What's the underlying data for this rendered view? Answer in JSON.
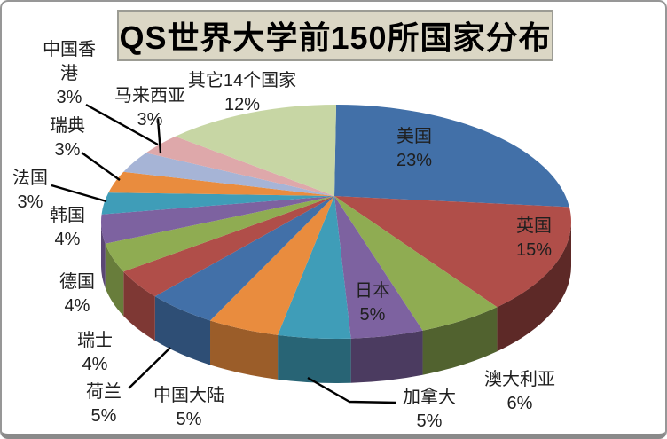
{
  "title": {
    "text": "QS世界大学前150所国家分布",
    "background": "#DBD7C5",
    "border_color": "#9C9C94",
    "text_color": "#000000"
  },
  "frame": {
    "background": "#FFFFFF",
    "border_color": "#979797"
  },
  "labels_style": {
    "text_color": "#1F1F1F",
    "leader_line_color": "#000000",
    "percent_suffix": "%"
  },
  "chart_data": {
    "type": "pie",
    "effect": "3d",
    "title": "QS世界大学前150所国家分布",
    "unit": "%",
    "total": 100,
    "start_angle_deg": 0,
    "direction": "clockwise",
    "labels_show": "name+percent",
    "legend": "none",
    "slices": [
      {
        "label": "美国",
        "value": 23,
        "color": "#4270A8"
      },
      {
        "label": "英国",
        "value": 15,
        "color": "#B04E49"
      },
      {
        "label": "澳大利亚",
        "value": 6,
        "color": "#8FAC52"
      },
      {
        "label": "日本",
        "value": 5,
        "color": "#7D62A0"
      },
      {
        "label": "加拿大",
        "value": 5,
        "color": "#3F9DB8"
      },
      {
        "label": "中国大陆",
        "value": 5,
        "color": "#E98C3E"
      },
      {
        "label": "荷兰",
        "value": 5,
        "color": "#4270A8"
      },
      {
        "label": "瑞士",
        "value": 4,
        "color": "#B04E49"
      },
      {
        "label": "德国",
        "value": 4,
        "color": "#8FAC52"
      },
      {
        "label": "韩国",
        "value": 4,
        "color": "#7D62A0"
      },
      {
        "label": "法国",
        "value": 3,
        "color": "#3F9DB8"
      },
      {
        "label": "瑞典",
        "value": 3,
        "color": "#E98C3E"
      },
      {
        "label": "马来西亚",
        "value": 3,
        "color": "#A6B4D6"
      },
      {
        "label": "中国香港",
        "value": 3,
        "color": "#DEA8AA"
      },
      {
        "label": "其它14个国家",
        "value": 12,
        "color": "#C7D6A4"
      }
    ]
  }
}
